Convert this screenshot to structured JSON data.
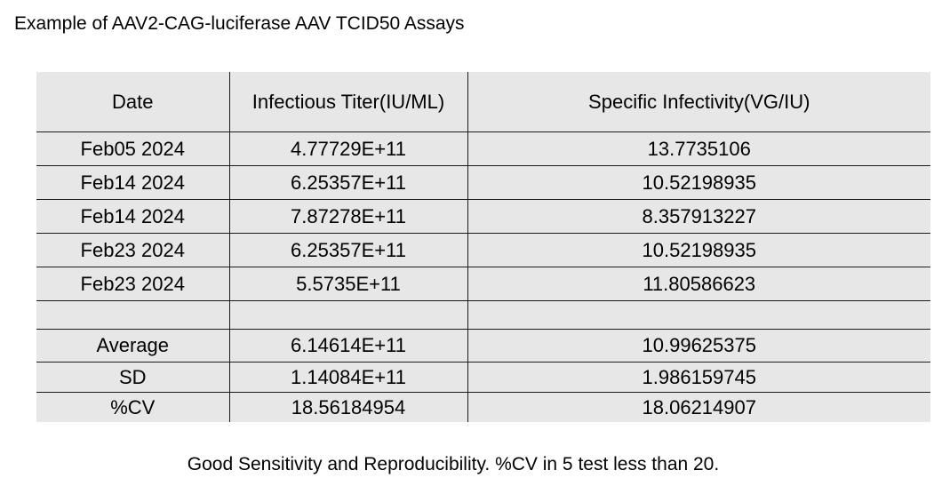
{
  "title": "Example of AAV2-CAG-luciferase AAV TCID50 Assays",
  "table": {
    "headers": [
      "Date",
      "Infectious Titer(IU/ML)",
      "Specific Infectivity(VG/IU)"
    ],
    "rows": [
      [
        "Feb05 2024",
        "4.77729E+11",
        "13.7735106"
      ],
      [
        "Feb14 2024",
        "6.25357E+11",
        "10.52198935"
      ],
      [
        "Feb14 2024",
        "7.87278E+11",
        "8.357913227"
      ],
      [
        "Feb23 2024",
        "6.25357E+11",
        "10.52198935"
      ],
      [
        "Feb23 2024",
        "5.5735E+11",
        "11.80586623"
      ]
    ],
    "stats": [
      [
        "Average",
        "6.14614E+11",
        "10.99625375"
      ],
      [
        "SD",
        "1.14084E+11",
        "1.986159745"
      ],
      [
        "%CV",
        "18.56184954",
        "18.06214907"
      ]
    ]
  },
  "footnote": "Good Sensitivity and Reproducibility. %CV in 5 test less than 20."
}
